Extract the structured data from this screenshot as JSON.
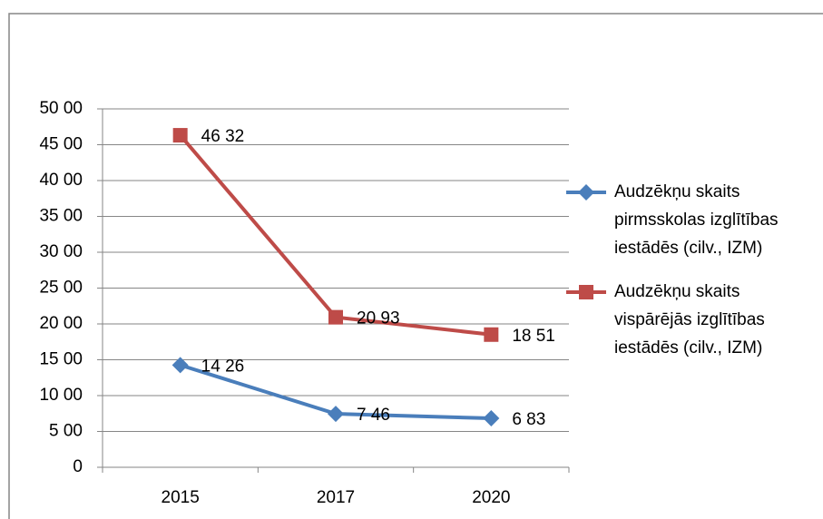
{
  "chart_data": {
    "type": "line",
    "categories": [
      "2015",
      "2017",
      "2020"
    ],
    "series": [
      {
        "name": "Audzēkņu skaits pirmsskolas izglītības iestādēs (cilv., IZM)",
        "color": "#4a7ebb",
        "marker": "diamond",
        "values": [
          1426,
          746,
          683
        ],
        "value_labels": [
          "14 26",
          "7 46",
          "6 83"
        ]
      },
      {
        "name": "Audzēkņu skaits vispārējās izglītības iestādēs (cilv., IZM)",
        "color": "#be4b48",
        "marker": "square",
        "values": [
          4632,
          2093,
          1851
        ],
        "value_labels": [
          "46 32",
          "20 93",
          "18 51"
        ]
      }
    ],
    "ylim": [
      0,
      5000
    ],
    "yticks": [
      {
        "value": 0,
        "label": "0"
      },
      {
        "value": 500,
        "label": "5 00"
      },
      {
        "value": 1000,
        "label": "10 00"
      },
      {
        "value": 1500,
        "label": "15 00"
      },
      {
        "value": 2000,
        "label": "20 00"
      },
      {
        "value": 2500,
        "label": "25 00"
      },
      {
        "value": 3000,
        "label": "30 00"
      },
      {
        "value": 3500,
        "label": "35 00"
      },
      {
        "value": 4000,
        "label": "40 00"
      },
      {
        "value": 4500,
        "label": "45 00"
      },
      {
        "value": 5000,
        "label": "50 00"
      }
    ],
    "grid": true,
    "legend": "right"
  }
}
